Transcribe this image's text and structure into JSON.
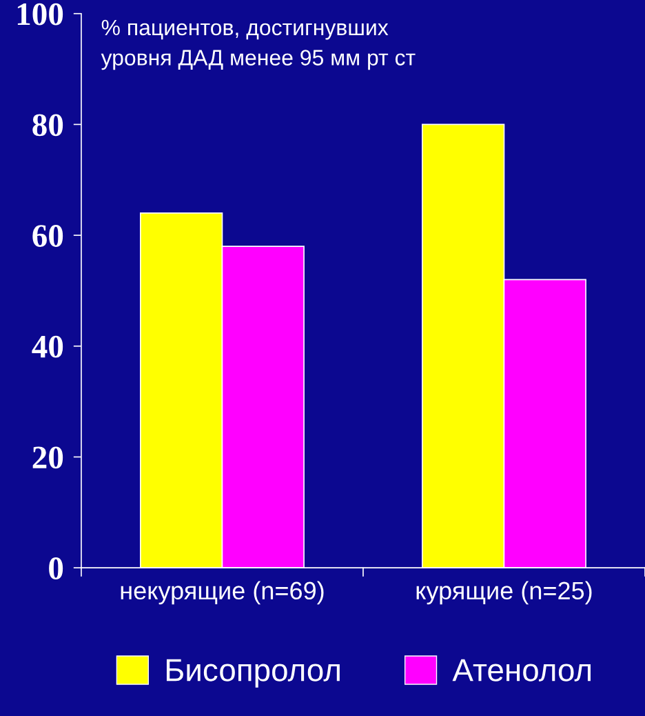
{
  "chart_data": {
    "type": "bar",
    "ylabel": "% пациентов, достигнувших\nуровня ДАД менее 95 мм рт ст",
    "categories": [
      "некурящие (n=69)",
      "курящие (n=25)"
    ],
    "series": [
      {
        "name": "Бисопролол",
        "color": "#ffff00",
        "values": [
          64,
          80
        ]
      },
      {
        "name": "Атенолол",
        "color": "#ff00ff",
        "values": [
          58,
          52
        ]
      }
    ],
    "ylim": [
      0,
      100
    ],
    "yticks": [
      0,
      20,
      40,
      60,
      80,
      100
    ],
    "grid": false,
    "legend": "bottom"
  }
}
